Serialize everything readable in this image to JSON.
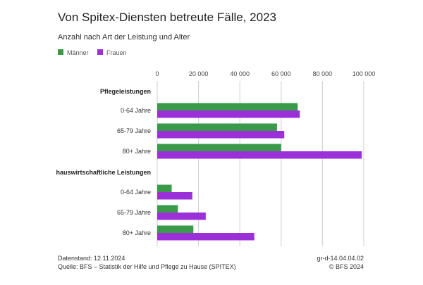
{
  "chart_data": {
    "type": "bar",
    "orientation": "horizontal",
    "title": "Von Spitex-Diensten betreute Fälle, 2023",
    "subtitle": "Anzahl nach Art der Leistung und Alter",
    "xlim": [
      0,
      100000
    ],
    "xticks": [
      0,
      20000,
      40000,
      60000,
      80000,
      100000
    ],
    "xtick_labels": [
      "0",
      "20 000",
      "40 000",
      "60 000",
      "80 000",
      "100 000"
    ],
    "grid": true,
    "legend_position": "top-left",
    "series": [
      {
        "name": "Männer",
        "color": "#3a9a4a"
      },
      {
        "name": "Frauen",
        "color": "#9b30d9"
      }
    ],
    "groups": [
      {
        "label": "Pflegeleistungen",
        "categories": [
          {
            "label": "0-64 Jahre",
            "values": [
              68000,
              69000
            ]
          },
          {
            "label": "65-79 Jahre",
            "values": [
              58000,
              61500
            ]
          },
          {
            "label": "80+ Jahre",
            "values": [
              60000,
              99000
            ]
          }
        ]
      },
      {
        "label": "hauswirtschaftliche Leistungen",
        "categories": [
          {
            "label": "0-64 Jahre",
            "values": [
              7000,
              17000
            ]
          },
          {
            "label": "65-79 Jahre",
            "values": [
              10000,
              23500
            ]
          },
          {
            "label": "80+ Jahre",
            "values": [
              17500,
              47000
            ]
          }
        ]
      }
    ]
  },
  "footer": {
    "datenstand": "Datenstand: 12.11.2024",
    "quelle": "Quelle: BFS – Statistik der Hilfe und Pflege zu Hause (SPITEX)",
    "code": "gr-d-14.04.04.02",
    "copyright": "© BFS 2024"
  }
}
